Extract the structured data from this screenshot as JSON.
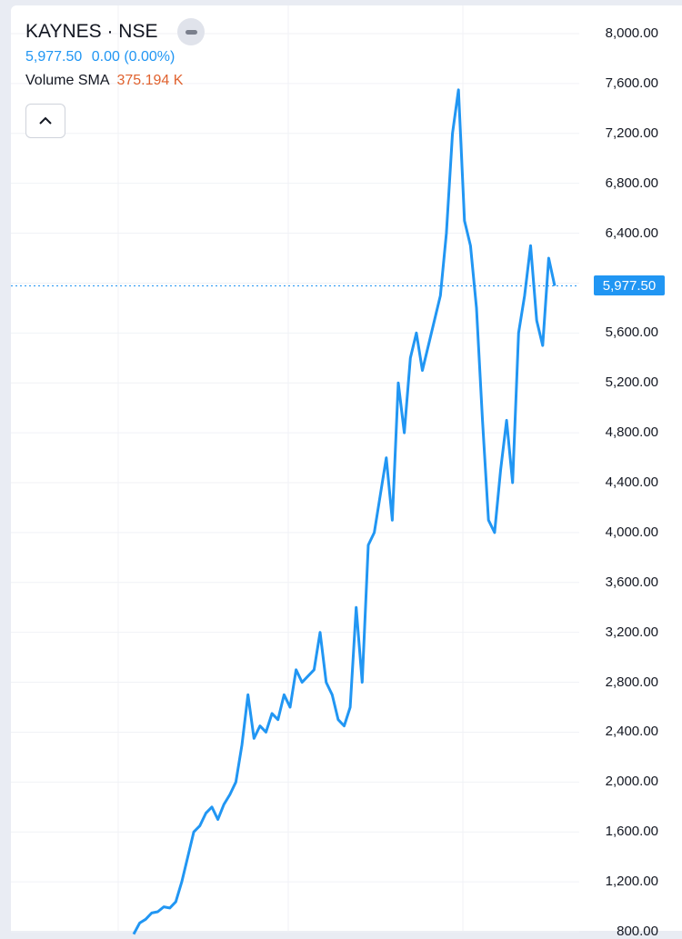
{
  "header": {
    "symbol": "KAYNES · NSE",
    "price": "5,977.50",
    "change": "0.00 (0.00%)",
    "volume_label": "Volume SMA",
    "volume_value": "375.194 K"
  },
  "icons": {
    "remove": "minus-icon",
    "collapse": "chevron-up-icon"
  },
  "colors": {
    "line": "#2196f3",
    "volume_value": "#e0622f",
    "price_tag_bg": "#2196f3",
    "grid": "#f0f2f6"
  },
  "price_scale": {
    "ticks": [
      "8,000.00",
      "7,600.00",
      "7,200.00",
      "6,800.00",
      "6,400.00",
      "6,000.00",
      "5,600.00",
      "5,200.00",
      "4,800.00",
      "4,400.00",
      "4,000.00",
      "3,600.00",
      "3,200.00",
      "2,800.00",
      "2,400.00",
      "2,000.00",
      "1,600.00",
      "1,200.00",
      "800.00"
    ],
    "last_price_tag": "5,977.50"
  },
  "chart_data": {
    "type": "line",
    "ylim": [
      800,
      8000
    ],
    "y_ticks": [
      8000,
      7600,
      7200,
      6800,
      6400,
      6000,
      5600,
      5200,
      4800,
      4400,
      4000,
      3600,
      3200,
      2800,
      2400,
      2000,
      1600,
      1200,
      800
    ],
    "last_price": 5977.5,
    "series": [
      {
        "values": [
          780,
          870,
          900,
          950,
          960,
          1000,
          990,
          1040,
          1200,
          1400,
          1600,
          1650,
          1750,
          1800,
          1700,
          1820,
          1900,
          2000,
          2300,
          2700,
          2350,
          2450,
          2400,
          2550,
          2500,
          2700,
          2600,
          2900,
          2800,
          2850,
          2900,
          3200,
          2800,
          2700,
          2500,
          2450,
          2600,
          3400,
          2800,
          3900,
          4000,
          4300,
          4600,
          4100,
          5200,
          4800,
          5400,
          5600,
          5300,
          5500,
          5700,
          5900,
          6400,
          7200,
          7550,
          6500,
          6300,
          5800,
          4900,
          4100,
          4000,
          4500,
          4900,
          4400,
          5600,
          5900,
          6300,
          5700,
          5500,
          6200,
          5977.5
        ]
      }
    ]
  }
}
